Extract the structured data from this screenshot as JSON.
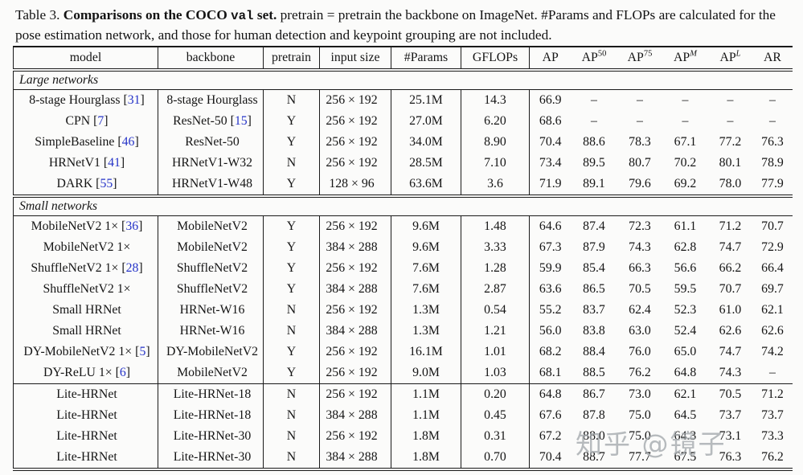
{
  "caption": {
    "prefix": "Table 3. ",
    "bold_pre": "Comparisons on the COCO ",
    "code": "val",
    "bold_post": " set.",
    "rest": " pretrain = pretrain the backbone on ImageNet. #Params and FLOPs are calculated for the pose estimation network, and those for human detection and keypoint grouping are not included."
  },
  "colors": {
    "citation_blue": "#2634c8",
    "rule_black": "#1a1a1a",
    "watermark_gray": "#a3a8ac"
  },
  "watermark": {
    "text": "知乎 @镜子"
  },
  "table": {
    "headers": {
      "model": "model",
      "backbone": "backbone",
      "pretrain": "pretrain",
      "input_size": "input size",
      "params": "#Params",
      "gflops": "GFLOPs",
      "ap": "AP",
      "ap50_base": "AP",
      "ap50_sup": "50",
      "ap75_base": "AP",
      "ap75_sup": "75",
      "apm_base": "AP",
      "apm_sup": "M",
      "apl_base": "AP",
      "apl_sup": "L",
      "ar": "AR"
    },
    "groups": [
      {
        "label": "Large networks",
        "rows": [
          {
            "model": "8-stage Hourglass",
            "cite": "31",
            "backbone": "8-stage Hourglass",
            "backbone_cite": null,
            "pretrain": "N",
            "input": "256 × 192",
            "params": "25.1M",
            "gflops": "14.3",
            "ap": "66.9",
            "ap50": "–",
            "ap75": "–",
            "apm": "–",
            "apl": "–",
            "ar": "–"
          },
          {
            "model": "CPN",
            "cite": "7",
            "backbone": "ResNet-50",
            "backbone_cite": "15",
            "pretrain": "Y",
            "input": "256 × 192",
            "params": "27.0M",
            "gflops": "6.20",
            "ap": "68.6",
            "ap50": "–",
            "ap75": "–",
            "apm": "–",
            "apl": "–",
            "ar": "–"
          },
          {
            "model": "SimpleBaseline",
            "cite": "46",
            "backbone": "ResNet-50",
            "backbone_cite": null,
            "pretrain": "Y",
            "input": "256 × 192",
            "params": "34.0M",
            "gflops": "8.90",
            "ap": "70.4",
            "ap50": "88.6",
            "ap75": "78.3",
            "apm": "67.1",
            "apl": "77.2",
            "ar": "76.3"
          },
          {
            "model": "HRNetV1",
            "cite": "41",
            "backbone": "HRNetV1-W32",
            "backbone_cite": null,
            "pretrain": "N",
            "input": "256 × 192",
            "params": "28.5M",
            "gflops": "7.10",
            "ap": "73.4",
            "ap50": "89.5",
            "ap75": "80.7",
            "apm": "70.2",
            "apl": "80.1",
            "ar": "78.9"
          },
          {
            "model": "DARK",
            "cite": "55",
            "backbone": "HRNetV1-W48",
            "backbone_cite": null,
            "pretrain": "Y",
            "input": "128 × 96",
            "params": "63.6M",
            "gflops": "3.6",
            "ap": "71.9",
            "ap50": "89.1",
            "ap75": "79.6",
            "apm": "69.2",
            "apl": "78.0",
            "ar": "77.9"
          }
        ]
      },
      {
        "label": "Small networks",
        "rows": [
          {
            "model": "MobileNetV2 1×",
            "cite": "36",
            "backbone": "MobileNetV2",
            "backbone_cite": null,
            "pretrain": "Y",
            "input": "256 × 192",
            "params": "9.6M",
            "gflops": "1.48",
            "ap": "64.6",
            "ap50": "87.4",
            "ap75": "72.3",
            "apm": "61.1",
            "apl": "71.2",
            "ar": "70.7"
          },
          {
            "model": "MobileNetV2 1×",
            "cite": null,
            "backbone": "MobileNetV2",
            "backbone_cite": null,
            "pretrain": "Y",
            "input": "384 × 288",
            "params": "9.6M",
            "gflops": "3.33",
            "ap": "67.3",
            "ap50": "87.9",
            "ap75": "74.3",
            "apm": "62.8",
            "apl": "74.7",
            "ar": "72.9"
          },
          {
            "model": "ShuffleNetV2 1×",
            "cite": "28",
            "backbone": "ShuffleNetV2",
            "backbone_cite": null,
            "pretrain": "Y",
            "input": "256 × 192",
            "params": "7.6M",
            "gflops": "1.28",
            "ap": "59.9",
            "ap50": "85.4",
            "ap75": "66.3",
            "apm": "56.6",
            "apl": "66.2",
            "ar": "66.4"
          },
          {
            "model": "ShuffleNetV2 1×",
            "cite": null,
            "backbone": "ShuffleNetV2",
            "backbone_cite": null,
            "pretrain": "Y",
            "input": "384 × 288",
            "params": "7.6M",
            "gflops": "2.87",
            "ap": "63.6",
            "ap50": "86.5",
            "ap75": "70.5",
            "apm": "59.5",
            "apl": "70.7",
            "ar": "69.7"
          },
          {
            "model": "Small HRNet",
            "cite": null,
            "backbone": "HRNet-W16",
            "backbone_cite": null,
            "pretrain": "N",
            "input": "256 × 192",
            "params": "1.3M",
            "gflops": "0.54",
            "ap": "55.2",
            "ap50": "83.7",
            "ap75": "62.4",
            "apm": "52.3",
            "apl": "61.0",
            "ar": "62.1"
          },
          {
            "model": "Small HRNet",
            "cite": null,
            "backbone": "HRNet-W16",
            "backbone_cite": null,
            "pretrain": "N",
            "input": "384 × 288",
            "params": "1.3M",
            "gflops": "1.21",
            "ap": "56.0",
            "ap50": "83.8",
            "ap75": "63.0",
            "apm": "52.4",
            "apl": "62.6",
            "ar": "62.6"
          },
          {
            "model": "DY-MobileNetV2 1×",
            "cite": "5",
            "backbone": "DY-MobileNetV2",
            "backbone_cite": null,
            "pretrain": "Y",
            "input": "256 × 192",
            "params": "16.1M",
            "gflops": "1.01",
            "ap": "68.2",
            "ap50": "88.4",
            "ap75": "76.0",
            "apm": "65.0",
            "apl": "74.7",
            "ar": "74.2"
          },
          {
            "model": "DY-ReLU 1×",
            "cite": "6",
            "backbone": "MobileNetV2",
            "backbone_cite": null,
            "pretrain": "Y",
            "input": "256 × 192",
            "params": "9.0M",
            "gflops": "1.03",
            "ap": "68.1",
            "ap50": "88.5",
            "ap75": "76.2",
            "apm": "64.8",
            "apl": "74.3",
            "ar": "–"
          }
        ]
      },
      {
        "label": null,
        "rows": [
          {
            "model": "Lite-HRNet",
            "cite": null,
            "backbone": "Lite-HRNet-18",
            "backbone_cite": null,
            "pretrain": "N",
            "input": "256 × 192",
            "params": "1.1M",
            "gflops": "0.20",
            "ap": "64.8",
            "ap50": "86.7",
            "ap75": "73.0",
            "apm": "62.1",
            "apl": "70.5",
            "ar": "71.2"
          },
          {
            "model": "Lite-HRNet",
            "cite": null,
            "backbone": "Lite-HRNet-18",
            "backbone_cite": null,
            "pretrain": "N",
            "input": "384 × 288",
            "params": "1.1M",
            "gflops": "0.45",
            "ap": "67.6",
            "ap50": "87.8",
            "ap75": "75.0",
            "apm": "64.5",
            "apl": "73.7",
            "ar": "73.7"
          },
          {
            "model": "Lite-HRNet",
            "cite": null,
            "backbone": "Lite-HRNet-30",
            "backbone_cite": null,
            "pretrain": "N",
            "input": "256 × 192",
            "params": "1.8M",
            "gflops": "0.31",
            "ap": "67.2",
            "ap50": "88.0",
            "ap75": "75.0",
            "apm": "64.3",
            "apl": "73.1",
            "ar": "73.3"
          },
          {
            "model": "Lite-HRNet",
            "cite": null,
            "backbone": "Lite-HRNet-30",
            "backbone_cite": null,
            "pretrain": "N",
            "input": "384 × 288",
            "params": "1.8M",
            "gflops": "0.70",
            "ap": "70.4",
            "ap50": "88.7",
            "ap75": "77.7",
            "apm": "67.5",
            "apl": "76.3",
            "ar": "76.2"
          }
        ]
      }
    ]
  }
}
